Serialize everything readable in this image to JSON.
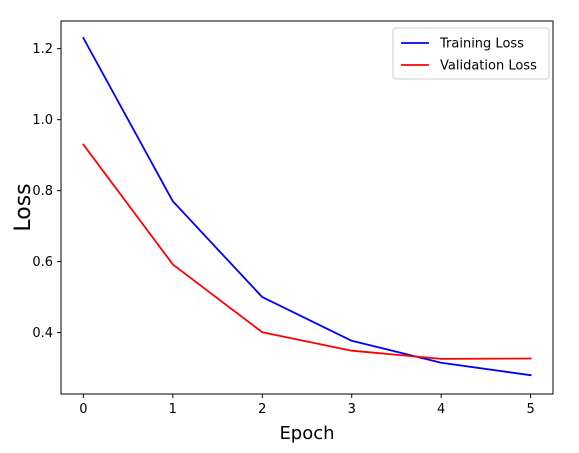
{
  "chart_data": {
    "type": "line",
    "title": "",
    "xlabel": "Epoch",
    "ylabel": "Loss",
    "x": [
      0,
      1,
      2,
      3,
      4,
      5
    ],
    "xlim": [
      -0.25,
      5.25
    ],
    "ylim": [
      0.227,
      1.278
    ],
    "xticks": [
      0,
      1,
      2,
      3,
      4,
      5
    ],
    "yticks": [
      0.4,
      0.6,
      0.8,
      1.0,
      1.2
    ],
    "ytick_labels": [
      "0.4",
      "0.6",
      "0.8",
      "1.0",
      "1.2"
    ],
    "grid": false,
    "legend": "top-right",
    "series": [
      {
        "name": "Training Loss",
        "color": "#0000ff",
        "values": [
          1.23,
          0.77,
          0.5,
          0.377,
          0.315,
          0.28
        ]
      },
      {
        "name": "Validation Loss",
        "color": "#ff0000",
        "values": [
          0.93,
          0.592,
          0.401,
          0.349,
          0.326,
          0.327
        ]
      }
    ]
  }
}
